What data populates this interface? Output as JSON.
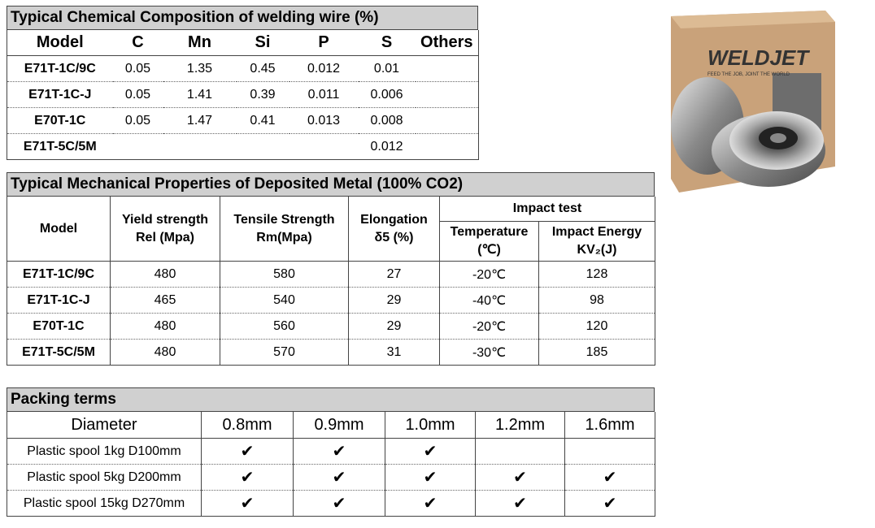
{
  "composition": {
    "title": "Typical Chemical Composition of welding wire (%)",
    "header": [
      "Model",
      "C",
      "Mn",
      "Si",
      "P",
      "S",
      "Others"
    ],
    "rows": [
      [
        "E71T-1C/9C",
        "0.05",
        "1.35",
        "0.45",
        "0.012",
        "0.01",
        null
      ],
      [
        "E71T-1C-J",
        "0.05",
        "1.41",
        "0.39",
        "0.011",
        "0.006",
        null
      ],
      [
        "E70T-1C",
        "0.05",
        "1.47",
        "0.41",
        "0.013",
        "0.008",
        null
      ],
      [
        "E71T-5C/5M",
        null,
        null,
        null,
        null,
        "0.012",
        null
      ]
    ]
  },
  "mechanical": {
    "title": "Typical Mechanical Properties of Deposited Metal (100% CO2)",
    "header": [
      [
        "Model"
      ],
      [
        "Yield strength",
        "Rel (Mpa)"
      ],
      [
        "Tensile Strength",
        "Rm(Mpa)"
      ],
      [
        "Elongation",
        "δ5 (%)"
      ]
    ],
    "group": "Impact test",
    "subheader": [
      [
        "Temperature",
        "(℃)"
      ],
      [
        "Impact Energy",
        "KV₂(J)"
      ]
    ],
    "rows": [
      [
        "E71T-1C/9C",
        "480",
        "580",
        "27",
        "-20℃",
        "128"
      ],
      [
        "E71T-1C-J",
        "465",
        "540",
        "29",
        "-40℃",
        "98"
      ],
      [
        "E70T-1C",
        "480",
        "560",
        "29",
        "-20℃",
        "120"
      ],
      [
        "E71T-5C/5M",
        "480",
        "570",
        "31",
        "-30℃",
        "185"
      ]
    ]
  },
  "packing": {
    "title": "Packing terms",
    "header": [
      "Diameter",
      "0.8mm",
      "0.9mm",
      "1.0mm",
      "1.2mm",
      "1.6mm"
    ],
    "rows": [
      [
        "Plastic spool 1kg D100mm",
        "✔",
        "✔",
        "✔",
        null,
        null
      ],
      [
        "Plastic spool 5kg D200mm",
        "✔",
        "✔",
        "✔",
        "✔",
        "✔"
      ],
      [
        "Plastic spool 15kg D270mm",
        "✔",
        "✔",
        "✔",
        "✔",
        "✔"
      ]
    ]
  },
  "product": {
    "brand": "WELDJET",
    "tagline": "FEED THE JOB, JOINT THE WORLD"
  }
}
